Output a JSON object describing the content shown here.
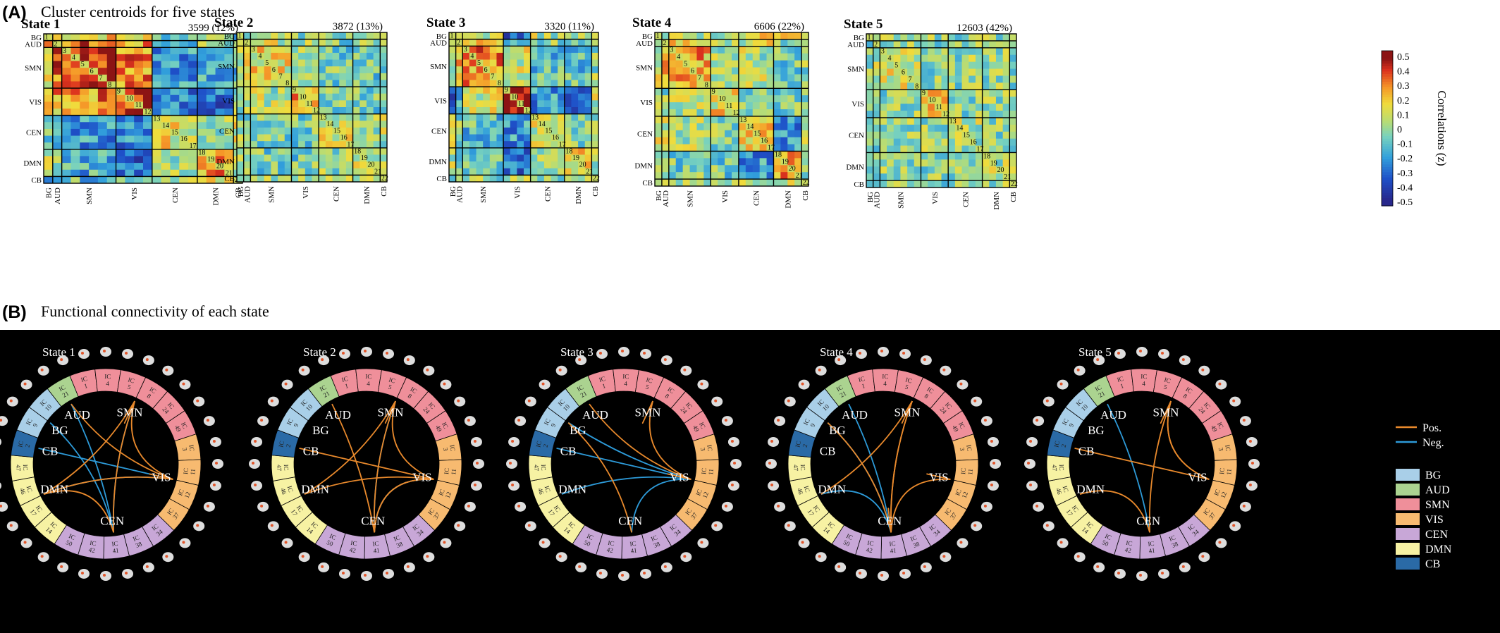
{
  "panel_a": {
    "letter": "(A)",
    "title": "Cluster centroids for five states"
  },
  "panel_b": {
    "letter": "(B)",
    "title": "Functional connectivity of each state"
  },
  "networks": [
    {
      "name": "BG",
      "color": "#a9cfe8",
      "ics": [
        1
      ]
    },
    {
      "name": "AUD",
      "color": "#abd390",
      "ics": [
        2
      ]
    },
    {
      "name": "SMN",
      "color": "#ef8f9a",
      "ics": [
        3,
        4,
        5,
        6,
        7,
        8
      ]
    },
    {
      "name": "VIS",
      "color": "#f7ba70",
      "ics": [
        9,
        10,
        11,
        12
      ]
    },
    {
      "name": "CEN",
      "color": "#c8a7d7",
      "ics": [
        13,
        14,
        15,
        16,
        17
      ]
    },
    {
      "name": "DMN",
      "color": "#f7f2a3",
      "ics": [
        18,
        19,
        20,
        21
      ]
    },
    {
      "name": "CB",
      "color": "#2a6aa6",
      "ics": [
        22
      ]
    }
  ],
  "colorbar": {
    "label": "Correlations (z)",
    "ticks": [
      "0.5",
      "0.4",
      "0.3",
      "0.2",
      "0.1",
      "0",
      "-0.1",
      "-0.2",
      "-0.3",
      "-0.4",
      "-0.5"
    ],
    "range": [
      -0.5,
      0.5
    ]
  },
  "legend_b": {
    "pos_label": "Pos.",
    "neg_label": "Neg.",
    "pos_color": "#e8892c",
    "neg_color": "#2d9ad8",
    "networks": [
      "BG",
      "AUD",
      "SMN",
      "VIS",
      "CEN",
      "DMN",
      "CB"
    ]
  },
  "ring_segments": [
    {
      "ic": "21",
      "net": "AUD"
    },
    {
      "ic": "1",
      "net": "SMN"
    },
    {
      "ic": "4",
      "net": "SMN"
    },
    {
      "ic": "5",
      "net": "SMN"
    },
    {
      "ic": "8",
      "net": "SMN"
    },
    {
      "ic": "24",
      "net": "SMN"
    },
    {
      "ic": "49",
      "net": "SMN"
    },
    {
      "ic": "3",
      "net": "VIS"
    },
    {
      "ic": "11",
      "net": "VIS"
    },
    {
      "ic": "12",
      "net": "VIS"
    },
    {
      "ic": "37",
      "net": "VIS"
    },
    {
      "ic": "34",
      "net": "CEN"
    },
    {
      "ic": "38",
      "net": "CEN"
    },
    {
      "ic": "41",
      "net": "CEN"
    },
    {
      "ic": "42",
      "net": "CEN"
    },
    {
      "ic": "50",
      "net": "CEN"
    },
    {
      "ic": "14",
      "net": "DMN"
    },
    {
      "ic": "17",
      "net": "DMN"
    },
    {
      "ic": "46",
      "net": "DMN"
    },
    {
      "ic": "47",
      "net": "DMN"
    },
    {
      "ic": "2",
      "net": "CB"
    },
    {
      "ic": "9",
      "net": "BG"
    },
    {
      "ic": "10",
      "net": "BG"
    }
  ],
  "ring_prefix": "IC",
  "ring_labels": [
    "VIS",
    "SMN",
    "AUD",
    "BG",
    "CB",
    "DMN",
    "CEN"
  ],
  "chart_data": [
    {
      "type": "heatmap",
      "title": "State 1",
      "count_label": "3599 (12%)",
      "count": 3599,
      "percent": 12,
      "rows": [
        "BG",
        "AUD",
        "SMN",
        "VIS",
        "CEN",
        "DMN",
        "CB"
      ],
      "block_means": [
        [
          0.05,
          0.2,
          0.2,
          0.15,
          -0.05,
          0.1,
          -0.1
        ],
        [
          0.2,
          0.3,
          0.35,
          0.25,
          -0.1,
          0.05,
          -0.1
        ],
        [
          0.2,
          0.35,
          0.45,
          0.3,
          -0.2,
          -0.15,
          -0.1
        ],
        [
          0.15,
          0.25,
          0.3,
          0.45,
          -0.25,
          -0.3,
          0
        ],
        [
          -0.05,
          -0.1,
          -0.2,
          -0.25,
          0.15,
          0.05,
          0.1
        ],
        [
          0.1,
          0.05,
          -0.15,
          -0.3,
          0.05,
          0.3,
          0.1
        ],
        [
          -0.1,
          -0.1,
          -0.1,
          0,
          0.1,
          0.1,
          0.2
        ]
      ]
    },
    {
      "type": "heatmap",
      "title": "State 2",
      "count_label": "3872 (13%)",
      "count": 3872,
      "percent": 13,
      "rows": [
        "BG",
        "AUD",
        "SMN",
        "VIS",
        "CEN",
        "DMN",
        "CB"
      ],
      "block_means": [
        [
          0,
          0.05,
          0.05,
          0,
          0,
          0,
          -0.05
        ],
        [
          0.05,
          0.1,
          0.1,
          0.05,
          -0.05,
          0,
          0
        ],
        [
          0.05,
          0.1,
          0.15,
          0.05,
          -0.05,
          -0.05,
          0
        ],
        [
          0,
          0.05,
          0.05,
          0.25,
          -0.05,
          -0.05,
          0
        ],
        [
          0,
          -0.05,
          -0.05,
          -0.05,
          0.1,
          0,
          0.05
        ],
        [
          0,
          0,
          -0.05,
          -0.05,
          0,
          0.1,
          0.05
        ],
        [
          -0.05,
          0,
          0,
          0,
          0.05,
          0.05,
          0.1
        ]
      ]
    },
    {
      "type": "heatmap",
      "title": "State 3",
      "count_label": "3320 (11%)",
      "count": 3320,
      "percent": 11,
      "rows": [
        "BG",
        "AUD",
        "SMN",
        "VIS",
        "CEN",
        "DMN",
        "CB"
      ],
      "block_means": [
        [
          0.05,
          0.1,
          0.1,
          -0.3,
          0.05,
          0.05,
          0
        ],
        [
          0.1,
          0.15,
          0.2,
          -0.2,
          0,
          0,
          0
        ],
        [
          0.1,
          0.2,
          0.3,
          0.1,
          -0.1,
          -0.1,
          0
        ],
        [
          -0.3,
          -0.2,
          0.1,
          0.5,
          -0.2,
          -0.3,
          0.1
        ],
        [
          0.05,
          0,
          -0.1,
          -0.2,
          0.1,
          0,
          0
        ],
        [
          0.05,
          0,
          -0.1,
          -0.3,
          0,
          0.15,
          0
        ],
        [
          0,
          0,
          0,
          0.1,
          0,
          0,
          0.1
        ]
      ]
    },
    {
      "type": "heatmap",
      "title": "State 4",
      "count_label": "6606 (22%)",
      "count": 6606,
      "percent": 22,
      "rows": [
        "BG",
        "AUD",
        "SMN",
        "VIS",
        "CEN",
        "DMN",
        "CB"
      ],
      "block_means": [
        [
          0.1,
          0.1,
          0.1,
          0,
          0.15,
          0.1,
          0
        ],
        [
          0.1,
          0.15,
          0.2,
          0,
          0.1,
          0,
          0
        ],
        [
          0.1,
          0.2,
          0.25,
          0.05,
          0.05,
          -0.05,
          0
        ],
        [
          0,
          0,
          0.05,
          0.15,
          0,
          -0.05,
          0
        ],
        [
          0.15,
          0.1,
          0.05,
          0,
          0.2,
          -0.2,
          0.05
        ],
        [
          0.1,
          0,
          -0.05,
          -0.05,
          -0.2,
          0.3,
          0.05
        ],
        [
          0,
          0,
          0,
          0,
          0.05,
          0.05,
          0.1
        ]
      ]
    },
    {
      "type": "heatmap",
      "title": "State 5",
      "count_label": "12603 (42%)",
      "count": 12603,
      "percent": 42,
      "rows": [
        "BG",
        "AUD",
        "SMN",
        "VIS",
        "CEN",
        "DMN",
        "CB"
      ],
      "block_means": [
        [
          0,
          0,
          0,
          0,
          0,
          0,
          0
        ],
        [
          0,
          0.05,
          0.05,
          0,
          0,
          0,
          0
        ],
        [
          0,
          0.05,
          0.1,
          0,
          0,
          0,
          0
        ],
        [
          0,
          0,
          0,
          0.2,
          0,
          0,
          0
        ],
        [
          0,
          0,
          0,
          0,
          0.05,
          0,
          0
        ],
        [
          0,
          0,
          0,
          0,
          0,
          0.05,
          0
        ],
        [
          0,
          0,
          0,
          0,
          0,
          0,
          0.05
        ]
      ]
    }
  ],
  "circos": [
    {
      "title": "State 1",
      "pos": [
        [
          "VIS",
          "SMN"
        ],
        [
          "VIS",
          "DMN"
        ],
        [
          "VIS",
          "VIS"
        ],
        [
          "CEN",
          "SMN"
        ],
        [
          "SMN",
          "DMN"
        ],
        [
          "SMN",
          "SMN"
        ],
        [
          "CEN",
          "DMN"
        ],
        [
          "VIS",
          "AUD"
        ]
      ],
      "neg": [
        [
          "VIS",
          "DMN"
        ],
        [
          "CEN",
          "AUD"
        ],
        [
          "CEN",
          "SMN"
        ],
        [
          "VIS",
          "CB"
        ],
        [
          "CEN",
          "BG"
        ]
      ]
    },
    {
      "title": "State 2",
      "pos": [
        [
          "CEN",
          "SMN"
        ],
        [
          "VIS",
          "SMN"
        ],
        [
          "VIS",
          "CEN"
        ],
        [
          "VIS",
          "DMN"
        ],
        [
          "SMN",
          "SMN"
        ],
        [
          "CEN",
          "AUD"
        ],
        [
          "VIS",
          "CB"
        ],
        [
          "DMN",
          "SMN"
        ],
        [
          "CEN",
          "VIS"
        ]
      ],
      "neg": [
        [
          "CEN",
          "SMN"
        ],
        [
          "CEN",
          "VIS"
        ],
        [
          "VIS",
          "CEN"
        ]
      ]
    },
    {
      "title": "State 3",
      "pos": [
        [
          "VIS",
          "VIS"
        ],
        [
          "VIS",
          "SMN"
        ],
        [
          "SMN",
          "SMN"
        ],
        [
          "CEN",
          "BG"
        ],
        [
          "VIS",
          "AUD"
        ]
      ],
      "neg": [
        [
          "VIS",
          "DMN"
        ],
        [
          "VIS",
          "CB"
        ],
        [
          "VIS",
          "BG"
        ],
        [
          "VIS",
          "CEN"
        ],
        [
          "VIS",
          "BG"
        ]
      ]
    },
    {
      "title": "State 4",
      "pos": [
        [
          "CEN",
          "SMN"
        ],
        [
          "CEN",
          "BG"
        ],
        [
          "CEN",
          "VIS"
        ],
        [
          "CEN",
          "CEN"
        ],
        [
          "DMN",
          "SMN"
        ],
        [
          "SMN",
          "SMN"
        ],
        [
          "CEN",
          "SMN"
        ],
        [
          "VIS",
          "VIS"
        ]
      ],
      "neg": [
        [
          "CEN",
          "DMN"
        ],
        [
          "CEN",
          "CEN"
        ],
        [
          "CEN",
          "AUD"
        ],
        [
          "CEN",
          "BG"
        ]
      ]
    },
    {
      "title": "State 5",
      "pos": [
        [
          "CEN",
          "SMN"
        ],
        [
          "VIS",
          "CB"
        ],
        [
          "VIS",
          "SMN"
        ],
        [
          "CEN",
          "DMN"
        ],
        [
          "SMN",
          "SMN"
        ],
        [
          "VIS",
          "SMN"
        ]
      ],
      "neg": [
        [
          "CEN",
          "AUD"
        ]
      ]
    }
  ]
}
